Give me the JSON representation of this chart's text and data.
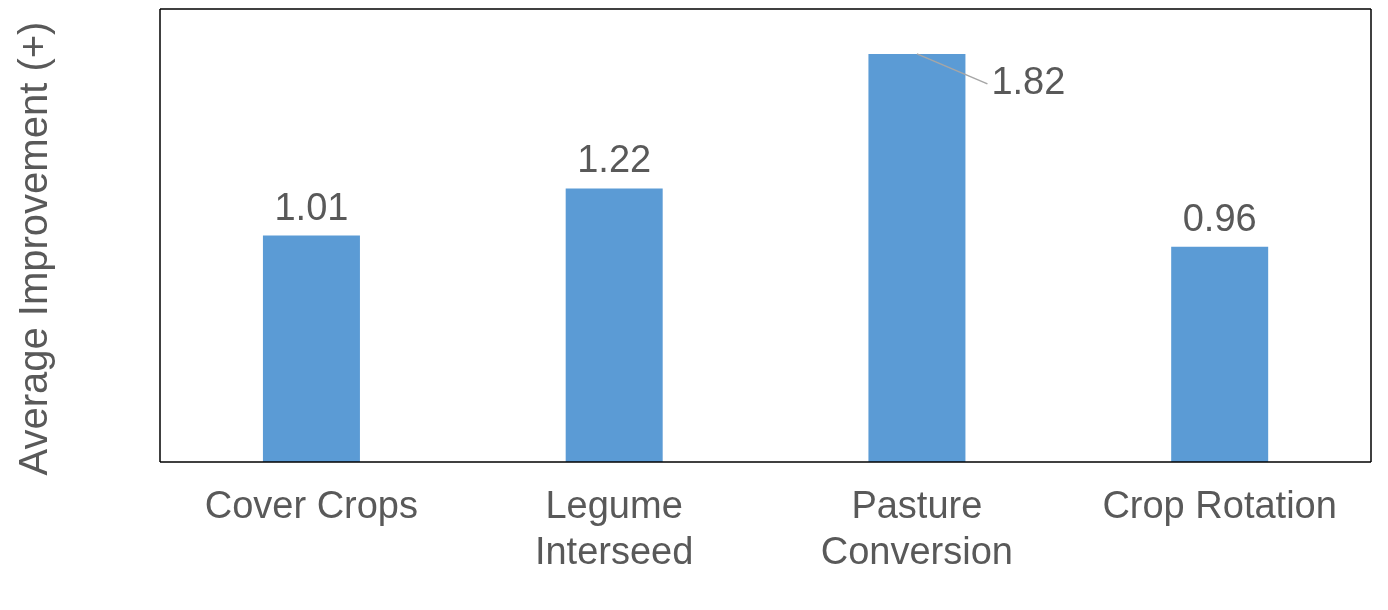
{
  "chart_data": {
    "type": "bar",
    "ylabel": "Average Improvement (+)",
    "categories": [
      "Cover Crops",
      "Legume Interseed",
      "Pasture Conversion",
      "Crop Rotation"
    ],
    "values": [
      1.01,
      1.22,
      1.82,
      0.96
    ],
    "color": "#5b9bd5",
    "data_labels": true,
    "tick_labels": "x"
  }
}
